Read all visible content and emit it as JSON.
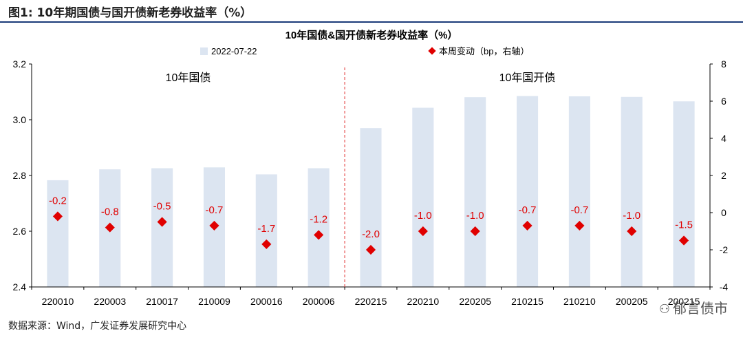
{
  "figure_title": "图1:  10年期国债与国开债新老券收益率（%）",
  "source_note": "数据来源：Wind，广发证券发展研究中心",
  "watermark": "郁言债市",
  "colors": {
    "bar": "#dce5f1",
    "marker": "#e00000",
    "divider": "#e03030",
    "label": "#e00000",
    "rule": "#1a3a78"
  },
  "chart_data": {
    "type": "bar",
    "title": "10年国债&国开债新老券收益率（%）",
    "categories": [
      "220010",
      "220003",
      "210017",
      "210009",
      "200016",
      "200006",
      "220215",
      "220210",
      "220205",
      "210215",
      "210210",
      "200205",
      "200215"
    ],
    "series": [
      {
        "name": "2022-07-22",
        "type": "bar",
        "axis": "left",
        "values": [
          2.783,
          2.822,
          2.826,
          2.829,
          2.804,
          2.826,
          2.97,
          3.043,
          3.081,
          3.085,
          3.084,
          3.082,
          3.066
        ]
      },
      {
        "name": "本周变动（bp，右轴）",
        "type": "scatter",
        "axis": "right",
        "values": [
          -0.2,
          -0.8,
          -0.5,
          -0.7,
          -1.7,
          -1.2,
          -2.0,
          -1.0,
          -1.0,
          -0.7,
          -0.7,
          -1.0,
          -1.5
        ],
        "labels": [
          "-0.2",
          "-0.8",
          "-0.5",
          "-0.7",
          "-1.7",
          "-1.2",
          "-2.0",
          "-1.0",
          "-1.0",
          "-0.7",
          "-0.7",
          "-1.0",
          "-1.5"
        ]
      }
    ],
    "left_axis": {
      "ylim": [
        2.4,
        3.2
      ],
      "ticks": [
        "2.4",
        "2.6",
        "2.8",
        "3.0",
        "3.2"
      ]
    },
    "right_axis": {
      "ylim": [
        -4,
        8
      ],
      "ticks": [
        "-4",
        "-2",
        "0",
        "2",
        "4",
        "6",
        "8"
      ]
    },
    "groups": [
      {
        "label": "10年国债",
        "from": 0,
        "to": 5
      },
      {
        "label": "10年国开债",
        "from": 6,
        "to": 12
      }
    ],
    "legend_position": "top-center",
    "grid": false
  }
}
